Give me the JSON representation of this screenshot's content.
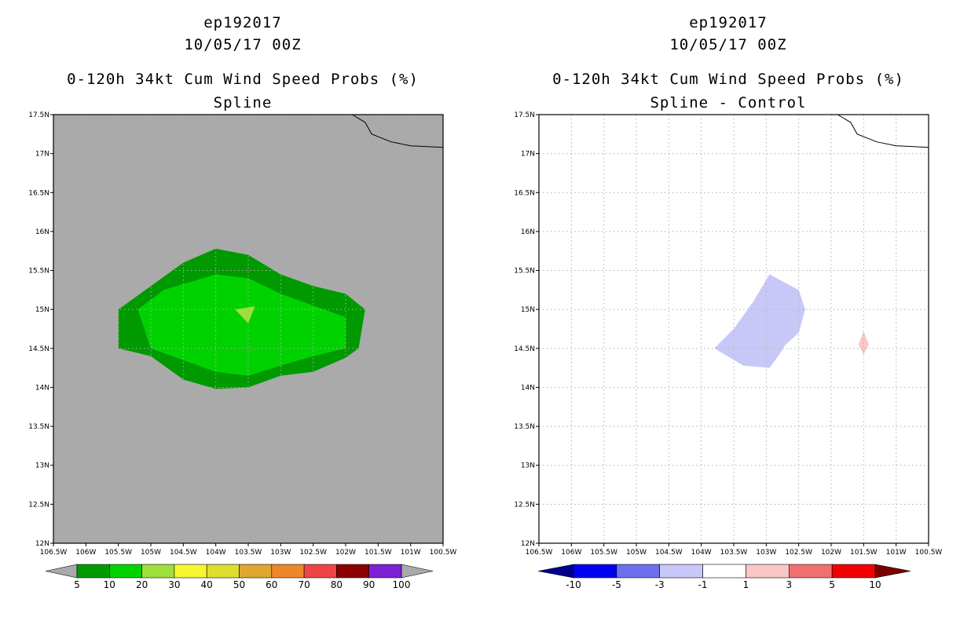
{
  "panels": [
    {
      "storm_id": "ep192017",
      "datetime": "10/05/17 00Z",
      "product": "0-120h 34kt Cum Wind Speed Probs (%)",
      "subtitle": "Spline"
    },
    {
      "storm_id": "ep192017",
      "datetime": "10/05/17 00Z",
      "product": "0-120h 34kt Cum Wind Speed Probs (%)",
      "subtitle": "Spline - Control"
    }
  ],
  "map": {
    "lon_range": [
      -106.5,
      -100.5
    ],
    "lat_range": [
      12,
      17.5
    ],
    "lon_ticks": [
      "106.5W",
      "106W",
      "105.5W",
      "105W",
      "104.5W",
      "104W",
      "103.5W",
      "103W",
      "102.5W",
      "102W",
      "101.5W",
      "101W",
      "100.5W"
    ],
    "lat_ticks": [
      "12N",
      "12.5N",
      "13N",
      "13.5N",
      "14N",
      "14.5N",
      "15N",
      "15.5N",
      "16N",
      "16.5N",
      "17N",
      "17.5N"
    ],
    "coastline": [
      [
        -101.9,
        17.5
      ],
      [
        -101.7,
        17.4
      ],
      [
        -101.6,
        17.25
      ],
      [
        -101.3,
        17.15
      ],
      [
        -101.0,
        17.1
      ],
      [
        -100.5,
        17.08
      ]
    ]
  },
  "left_colorbar": {
    "labels": [
      "5",
      "10",
      "20",
      "30",
      "40",
      "50",
      "60",
      "70",
      "80",
      "90",
      "100"
    ],
    "colors": [
      "#009a00",
      "#00d200",
      "#9fdf3c",
      "#f7f731",
      "#dede30",
      "#dfa72f",
      "#ee862b",
      "#f04545",
      "#8b0000",
      "#7c20d4"
    ],
    "end_colors": [
      "#aaaaaa",
      "#aaaaaa"
    ]
  },
  "right_colorbar": {
    "labels": [
      "-10",
      "-5",
      "-3",
      "-1",
      "1",
      "3",
      "5",
      "10"
    ],
    "colors": [
      "#0000f0",
      "#6e6ef0",
      "#c8c8f8",
      "#ffffff",
      "#f8c8c8",
      "#f07070",
      "#f00000"
    ],
    "end_colors": [
      "#00008b",
      "#7a0000"
    ]
  },
  "fields": {
    "left_background": "#aaaaaa",
    "left_contours": [
      {
        "level": "5",
        "color": "#009a00",
        "polygon": [
          [
            -105.5,
            15
          ],
          [
            -104.5,
            15.6
          ],
          [
            -104,
            15.78
          ],
          [
            -103.5,
            15.7
          ],
          [
            -103,
            15.45
          ],
          [
            -102.5,
            15.3
          ],
          [
            -102,
            15.2
          ],
          [
            -101.7,
            15
          ],
          [
            -101.8,
            14.5
          ],
          [
            -102,
            14.38
          ],
          [
            -102.5,
            14.2
          ],
          [
            -103,
            14.15
          ],
          [
            -103.5,
            14
          ],
          [
            -104,
            13.98
          ],
          [
            -104.5,
            14.1
          ],
          [
            -105.0,
            14.4
          ],
          [
            -105.5,
            14.5
          ]
        ]
      },
      {
        "level": "10",
        "color": "#00d200",
        "polygon": [
          [
            -105.2,
            15
          ],
          [
            -104.8,
            15.25
          ],
          [
            -104,
            15.45
          ],
          [
            -103.5,
            15.4
          ],
          [
            -103,
            15.2
          ],
          [
            -102.0,
            14.9
          ],
          [
            -102.0,
            14.5
          ],
          [
            -102.5,
            14.4
          ],
          [
            -103,
            14.28
          ],
          [
            -103.5,
            14.15
          ],
          [
            -104,
            14.2
          ],
          [
            -104.5,
            14.35
          ],
          [
            -105.0,
            14.5
          ]
        ]
      },
      {
        "level": "20",
        "color": "#9fdf3c",
        "polygon": [
          [
            -103.7,
            15
          ],
          [
            -103.4,
            15.04
          ],
          [
            -103.5,
            14.82
          ]
        ]
      }
    ],
    "right_contours": [
      {
        "level": "-1",
        "color": "#c8c8f8",
        "polygon": [
          [
            -103.8,
            14.5
          ],
          [
            -103.5,
            14.75
          ],
          [
            -103.2,
            15.1
          ],
          [
            -102.95,
            15.45
          ],
          [
            -102.5,
            15.25
          ],
          [
            -102.4,
            15.0
          ],
          [
            -102.5,
            14.7
          ],
          [
            -102.7,
            14.55
          ],
          [
            -102.8,
            14.42
          ],
          [
            -102.95,
            14.25
          ],
          [
            -103.35,
            14.28
          ]
        ]
      },
      {
        "level": "1",
        "color": "#f8c8c8",
        "polygon": [
          [
            -101.5,
            14.72
          ],
          [
            -101.42,
            14.55
          ],
          [
            -101.5,
            14.42
          ],
          [
            -101.58,
            14.55
          ]
        ]
      }
    ]
  }
}
